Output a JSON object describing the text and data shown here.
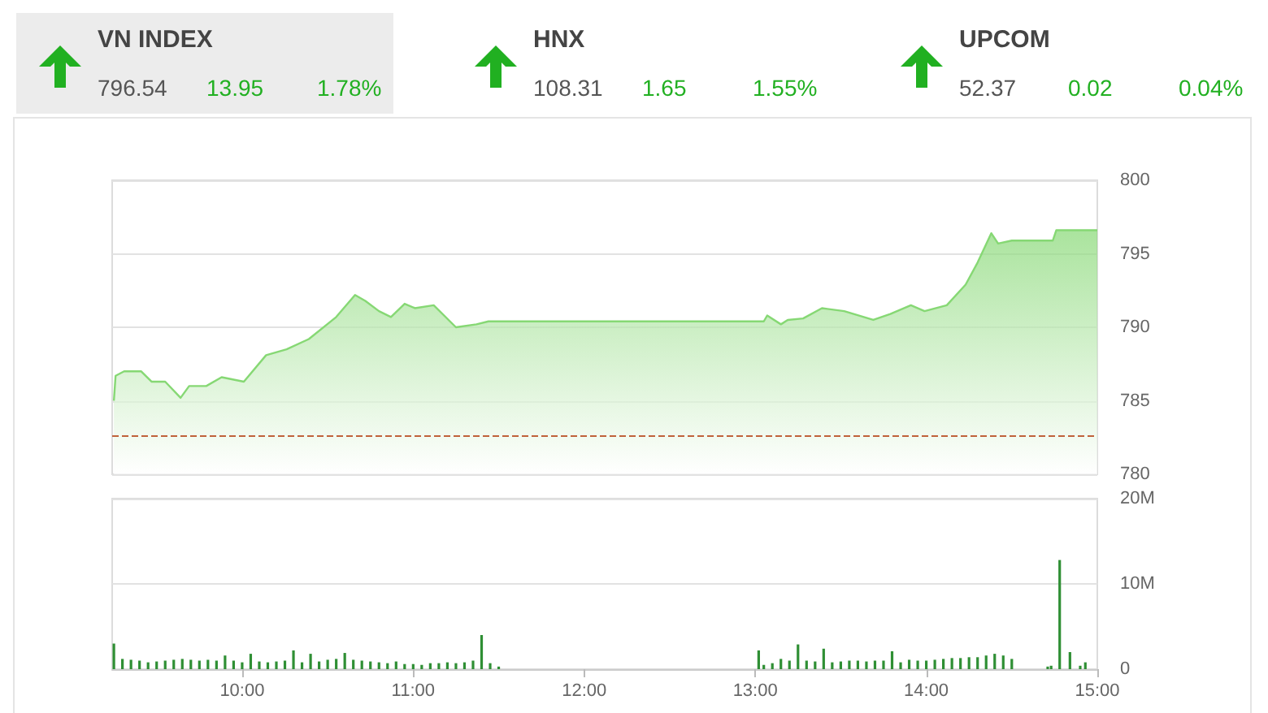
{
  "chart_data": [
    {
      "type": "other",
      "annotations": [
        "VN INDEX",
        "796.54",
        "13.95",
        "1.78%",
        "HNX",
        "108.31",
        "1.65",
        "1.55%",
        "UPCOM",
        "52.37",
        "0.02",
        "0.04%"
      ]
    },
    {
      "type": "area",
      "xlim": [
        9.24,
        15.0
      ],
      "ylim": [
        780,
        800
      ],
      "yticks": [
        780,
        785,
        790,
        795,
        800
      ],
      "grid": "y",
      "tick_labels": "y",
      "ref_lines": [
        {
          "axis": "y",
          "value": 782.6,
          "color": "#c0623a",
          "line_style": "dashed"
        }
      ],
      "series": [
        {
          "color": "#86d874",
          "x": [
            9.25,
            9.26,
            9.31,
            9.41,
            9.47,
            9.55,
            9.64,
            9.69,
            9.79,
            9.88,
            10.01,
            10.14,
            10.26,
            10.39,
            10.55,
            10.66,
            10.72,
            10.8,
            10.87,
            10.95,
            11.01,
            11.12,
            11.25,
            11.37,
            11.44,
            11.5,
            13.05,
            13.07,
            13.15,
            13.19,
            13.28,
            13.39,
            13.52,
            13.69,
            13.79,
            13.91,
            13.99,
            14.12,
            14.23,
            14.3,
            14.38,
            14.42,
            14.5,
            14.74,
            14.76,
            15.0
          ],
          "values": [
            785.0,
            786.7,
            787.0,
            787.0,
            786.3,
            786.3,
            785.2,
            786.0,
            786.0,
            786.6,
            786.3,
            788.1,
            788.5,
            789.2,
            790.7,
            792.2,
            791.8,
            791.1,
            790.7,
            791.6,
            791.3,
            791.5,
            790.0,
            790.2,
            790.4,
            790.4,
            790.4,
            790.8,
            790.2,
            790.5,
            790.6,
            791.3,
            791.1,
            790.5,
            790.9,
            791.5,
            791.1,
            791.5,
            792.9,
            794.4,
            796.4,
            795.7,
            795.9,
            795.9,
            796.6,
            796.6
          ]
        }
      ]
    },
    {
      "type": "bar",
      "xlim": [
        9.24,
        15.0
      ],
      "ylim": [
        0,
        20
      ],
      "grid": "y",
      "yticks": [
        0,
        {
          "value": 10,
          "label": "10M"
        },
        {
          "value": 20,
          "label": "20M"
        }
      ],
      "xticks": [
        {
          "value": 10,
          "label": "10:00"
        },
        {
          "value": 11,
          "label": "11:00"
        },
        {
          "value": 12,
          "label": "12:00"
        },
        {
          "value": 13,
          "label": "13:00"
        },
        {
          "value": 14,
          "label": "14:00"
        },
        {
          "value": 15,
          "label": "15:00"
        }
      ],
      "series": [
        {
          "color": "#2f8f34",
          "x": [
            9.25,
            9.3,
            9.35,
            9.4,
            9.45,
            9.5,
            9.55,
            9.6,
            9.65,
            9.7,
            9.75,
            9.8,
            9.85,
            9.9,
            9.95,
            10.0,
            10.05,
            10.1,
            10.15,
            10.2,
            10.25,
            10.3,
            10.35,
            10.4,
            10.45,
            10.5,
            10.55,
            10.6,
            10.65,
            10.7,
            10.75,
            10.8,
            10.85,
            10.9,
            10.95,
            11.0,
            11.05,
            11.1,
            11.15,
            11.2,
            11.25,
            11.3,
            11.35,
            11.4,
            11.45,
            11.5,
            13.02,
            13.05,
            13.1,
            13.15,
            13.2,
            13.25,
            13.3,
            13.35,
            13.4,
            13.45,
            13.5,
            13.55,
            13.6,
            13.65,
            13.7,
            13.75,
            13.8,
            13.85,
            13.9,
            13.95,
            14.0,
            14.05,
            14.1,
            14.15,
            14.2,
            14.25,
            14.3,
            14.35,
            14.4,
            14.45,
            14.5,
            14.71,
            14.73,
            14.78,
            14.84,
            14.9,
            14.93
          ],
          "values": [
            3.0,
            1.2,
            1.1,
            1.0,
            0.8,
            0.9,
            1.0,
            1.1,
            1.2,
            1.1,
            1.0,
            1.1,
            1.0,
            1.6,
            1.0,
            0.8,
            1.8,
            0.9,
            0.8,
            0.9,
            1.0,
            2.2,
            0.8,
            1.8,
            0.9,
            1.1,
            1.2,
            1.9,
            1.1,
            1.0,
            0.9,
            0.8,
            0.7,
            0.9,
            0.6,
            0.6,
            0.5,
            0.7,
            0.7,
            0.8,
            0.7,
            0.8,
            1.0,
            4.0,
            0.7,
            0.3,
            2.2,
            0.5,
            0.7,
            1.2,
            1.0,
            2.9,
            1.0,
            0.9,
            2.4,
            0.8,
            0.9,
            1.0,
            1.0,
            0.9,
            1.0,
            1.0,
            2.1,
            0.8,
            1.1,
            1.0,
            1.0,
            1.1,
            1.2,
            1.3,
            1.3,
            1.4,
            1.4,
            1.6,
            1.8,
            1.6,
            1.2,
            0.3,
            0.4,
            12.8,
            2.0,
            0.4,
            0.8
          ]
        }
      ]
    }
  ]
}
